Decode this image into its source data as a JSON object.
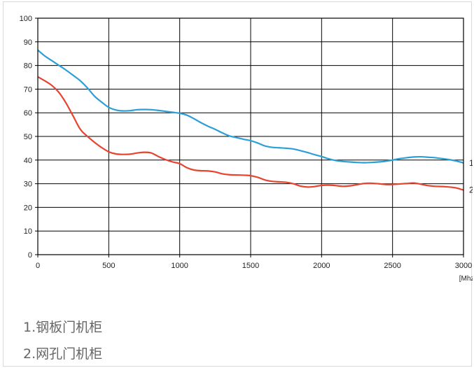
{
  "chart_data": {
    "type": "line",
    "title": "",
    "xlabel": "",
    "ylabel": "",
    "x_unit": "[Mhz]",
    "xlim": [
      0,
      3000
    ],
    "ylim": [
      0,
      100
    ],
    "x_ticks": [
      0,
      500,
      1000,
      1500,
      2000,
      2500,
      3000
    ],
    "y_ticks": [
      0,
      10,
      20,
      30,
      40,
      50,
      60,
      70,
      80,
      90,
      100
    ],
    "grid": true,
    "series": [
      {
        "name": "1",
        "color": "#2a9fd8",
        "points": [
          [
            0,
            86.5
          ],
          [
            50,
            84
          ],
          [
            100,
            82
          ],
          [
            150,
            80
          ],
          [
            200,
            78
          ],
          [
            250,
            75.8
          ],
          [
            300,
            73.5
          ],
          [
            350,
            70.5
          ],
          [
            400,
            67
          ],
          [
            450,
            64.5
          ],
          [
            500,
            62.3
          ],
          [
            550,
            61.2
          ],
          [
            600,
            60.8
          ],
          [
            650,
            60.9
          ],
          [
            700,
            61.3
          ],
          [
            750,
            61.4
          ],
          [
            800,
            61.3
          ],
          [
            850,
            61
          ],
          [
            900,
            60.6
          ],
          [
            950,
            60.2
          ],
          [
            1000,
            59.8
          ],
          [
            1050,
            59
          ],
          [
            1100,
            57.5
          ],
          [
            1150,
            55.8
          ],
          [
            1200,
            54.3
          ],
          [
            1250,
            53
          ],
          [
            1300,
            51.5
          ],
          [
            1350,
            50.2
          ],
          [
            1400,
            49.5
          ],
          [
            1450,
            48.8
          ],
          [
            1500,
            48.2
          ],
          [
            1550,
            47.2
          ],
          [
            1600,
            46
          ],
          [
            1650,
            45.4
          ],
          [
            1700,
            45.2
          ],
          [
            1750,
            45
          ],
          [
            1800,
            44.7
          ],
          [
            1850,
            44
          ],
          [
            1900,
            43.2
          ],
          [
            1950,
            42.3
          ],
          [
            2000,
            41.5
          ],
          [
            2050,
            40.5
          ],
          [
            2100,
            39.8
          ],
          [
            2150,
            39.4
          ],
          [
            2200,
            39.2
          ],
          [
            2250,
            39
          ],
          [
            2300,
            38.9
          ],
          [
            2350,
            39
          ],
          [
            2400,
            39.2
          ],
          [
            2450,
            39.5
          ],
          [
            2500,
            40
          ],
          [
            2550,
            40.6
          ],
          [
            2600,
            41
          ],
          [
            2650,
            41.3
          ],
          [
            2700,
            41.4
          ],
          [
            2750,
            41.2
          ],
          [
            2800,
            41
          ],
          [
            2850,
            40.6
          ],
          [
            2900,
            40.2
          ],
          [
            2950,
            39.6
          ],
          [
            3000,
            38.8
          ]
        ]
      },
      {
        "name": "2",
        "color": "#e8432e",
        "points": [
          [
            0,
            75.2
          ],
          [
            50,
            73.5
          ],
          [
            100,
            71.5
          ],
          [
            150,
            68.5
          ],
          [
            200,
            64
          ],
          [
            250,
            58.5
          ],
          [
            300,
            53
          ],
          [
            350,
            50
          ],
          [
            400,
            47.5
          ],
          [
            450,
            45.3
          ],
          [
            500,
            43.5
          ],
          [
            550,
            42.6
          ],
          [
            600,
            42.4
          ],
          [
            650,
            42.5
          ],
          [
            700,
            43
          ],
          [
            750,
            43.3
          ],
          [
            800,
            43
          ],
          [
            850,
            41.5
          ],
          [
            900,
            40.2
          ],
          [
            950,
            39.2
          ],
          [
            1000,
            38.5
          ],
          [
            1050,
            36.8
          ],
          [
            1100,
            35.8
          ],
          [
            1150,
            35.5
          ],
          [
            1200,
            35.4
          ],
          [
            1250,
            35
          ],
          [
            1300,
            34.2
          ],
          [
            1350,
            33.8
          ],
          [
            1400,
            33.7
          ],
          [
            1450,
            33.6
          ],
          [
            1500,
            33.4
          ],
          [
            1550,
            32.7
          ],
          [
            1600,
            31.6
          ],
          [
            1650,
            31
          ],
          [
            1700,
            30.8
          ],
          [
            1750,
            30.6
          ],
          [
            1800,
            30
          ],
          [
            1850,
            29
          ],
          [
            1900,
            28.6
          ],
          [
            1950,
            28.8
          ],
          [
            2000,
            29.3
          ],
          [
            2050,
            29.4
          ],
          [
            2100,
            29.2
          ],
          [
            2150,
            28.9
          ],
          [
            2200,
            29.1
          ],
          [
            2250,
            29.6
          ],
          [
            2300,
            30.1
          ],
          [
            2350,
            30.2
          ],
          [
            2400,
            30
          ],
          [
            2450,
            29.7
          ],
          [
            2500,
            29.7
          ],
          [
            2550,
            29.9
          ],
          [
            2600,
            30.1
          ],
          [
            2650,
            30.3
          ],
          [
            2700,
            29.8
          ],
          [
            2750,
            29.2
          ],
          [
            2800,
            28.9
          ],
          [
            2850,
            28.8
          ],
          [
            2900,
            28.6
          ],
          [
            2950,
            28.2
          ],
          [
            3000,
            27.3
          ]
        ]
      }
    ]
  },
  "legend": {
    "line1": "1.钢板门机柜",
    "line2": "2.网孔门机柜"
  }
}
